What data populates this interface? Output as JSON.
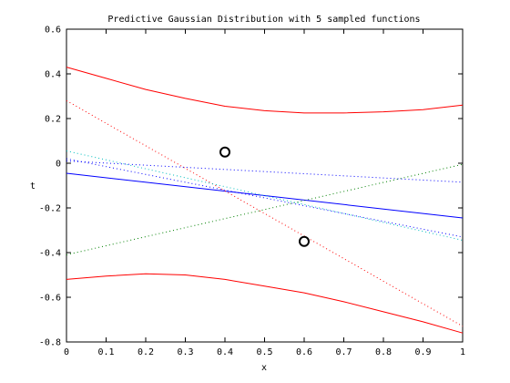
{
  "chart_data": {
    "type": "line",
    "title": "Predictive Gaussian Distribution with 5 sampled functions",
    "xlabel": "x",
    "ylabel": "t",
    "xlim": [
      0,
      1
    ],
    "ylim": [
      -0.8,
      0.6
    ],
    "xticks": [
      "0",
      "0.1",
      "0.2",
      "0.3",
      "0.4",
      "0.5",
      "0.6",
      "0.7",
      "0.8",
      "0.9",
      "1"
    ],
    "yticks": [
      "0.6",
      "0.4",
      "0.2",
      "0",
      "-0.2",
      "-0.4",
      "-0.6",
      "-0.8"
    ],
    "grid": false,
    "legend": "none",
    "series": [
      {
        "style": "solid",
        "color": "#ff0000",
        "x": [
          0,
          0.1,
          0.2,
          0.3,
          0.4,
          0.5,
          0.6,
          0.7,
          0.8,
          0.9,
          1.0
        ],
        "y": [
          0.43,
          0.38,
          0.33,
          0.29,
          0.255,
          0.235,
          0.225,
          0.225,
          0.23,
          0.24,
          0.26
        ]
      },
      {
        "style": "solid",
        "color": "#ff0000",
        "x": [
          0,
          0.1,
          0.2,
          0.3,
          0.4,
          0.5,
          0.6,
          0.7,
          0.8,
          0.9,
          1.0
        ],
        "y": [
          -0.52,
          -0.505,
          -0.495,
          -0.5,
          -0.52,
          -0.55,
          -0.58,
          -0.62,
          -0.665,
          -0.71,
          -0.76
        ]
      },
      {
        "style": "solid",
        "color": "#0000ff",
        "x": [
          0,
          1
        ],
        "y": [
          -0.045,
          -0.245
        ]
      },
      {
        "style": "dotted",
        "color": "#ff0000",
        "x": [
          0,
          1
        ],
        "y": [
          0.28,
          -0.73
        ]
      },
      {
        "style": "dotted",
        "color": "#008000",
        "x": [
          0,
          1
        ],
        "y": [
          -0.41,
          -0.005
        ]
      },
      {
        "style": "dotted",
        "color": "#0000ff",
        "x": [
          0,
          1
        ],
        "y": [
          0.01,
          -0.085
        ]
      },
      {
        "style": "dotted",
        "color": "#00bfbf",
        "x": [
          0,
          1
        ],
        "y": [
          0.055,
          -0.345
        ]
      },
      {
        "style": "dotted",
        "color": "#0000ff",
        "x": [
          0,
          1
        ],
        "y": [
          0.02,
          -0.33
        ]
      }
    ],
    "points": [
      {
        "x": 0.4,
        "y": 0.05
      },
      {
        "x": 0.6,
        "y": -0.35
      }
    ]
  }
}
